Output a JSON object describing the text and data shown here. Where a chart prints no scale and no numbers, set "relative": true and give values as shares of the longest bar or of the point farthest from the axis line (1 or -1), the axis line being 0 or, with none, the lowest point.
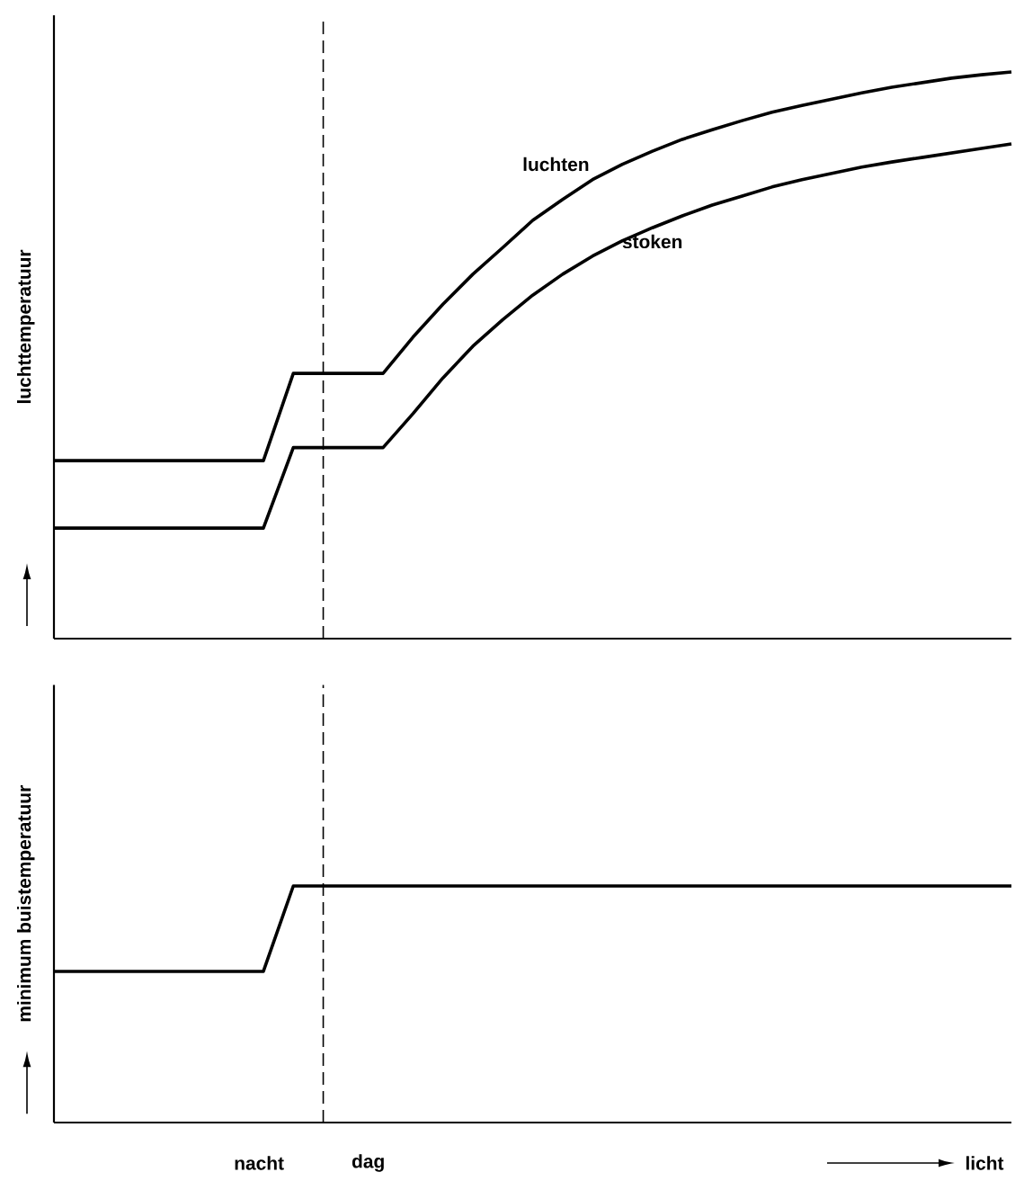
{
  "chart_data": [
    {
      "type": "line",
      "ylabel": "luchttemperatuur",
      "relative": true,
      "marker": "none",
      "line_style": "solid",
      "categories": [
        null,
        null,
        null,
        null,
        null,
        null,
        null,
        null,
        null,
        null,
        null,
        null,
        null,
        null,
        null,
        null,
        null,
        null,
        null,
        null,
        null,
        null,
        null,
        null,
        null,
        null,
        null,
        null,
        null,
        null,
        null,
        null,
        null
      ],
      "series": [
        {
          "name": "luchten",
          "color": "#000000",
          "values": [
            0.314,
            0.314,
            0.314,
            0.314,
            0.314,
            0.314,
            0.314,
            0.314,
            0.468,
            0.468,
            0.468,
            0.468,
            0.532,
            0.59,
            0.643,
            0.69,
            0.738,
            0.775,
            0.81,
            0.837,
            0.86,
            0.881,
            0.898,
            0.914,
            0.929,
            0.941,
            0.952,
            0.963,
            0.973,
            0.981,
            0.989,
            0.995,
            1.0
          ]
        },
        {
          "name": "stoken",
          "color": "#000000",
          "values": [
            0.195,
            0.195,
            0.195,
            0.195,
            0.195,
            0.195,
            0.195,
            0.195,
            0.337,
            0.337,
            0.337,
            0.337,
            0.397,
            0.46,
            0.516,
            0.563,
            0.606,
            0.643,
            0.675,
            0.702,
            0.725,
            0.746,
            0.765,
            0.781,
            0.797,
            0.81,
            0.821,
            0.832,
            0.841,
            0.849,
            0.857,
            0.865,
            0.873
          ]
        }
      ]
    },
    {
      "type": "line",
      "ylabel": "minimum buistemperatuur",
      "xlabel": "licht",
      "relative": true,
      "marker": "none",
      "line_style": "solid",
      "categories": [
        null,
        null,
        null,
        null,
        null,
        null,
        null,
        null,
        null,
        null,
        null,
        null,
        null,
        null,
        null,
        null,
        null,
        null,
        null,
        null,
        null,
        null,
        null,
        null,
        null,
        null,
        null,
        null,
        null,
        null,
        null,
        null,
        null
      ],
      "series": [
        {
          "color": "#000000",
          "values": [
            0.639,
            0.639,
            0.639,
            0.639,
            0.639,
            0.639,
            0.639,
            0.639,
            1,
            1,
            1,
            1,
            1,
            1,
            1,
            1,
            1,
            1,
            1,
            1,
            1,
            1,
            1,
            1,
            1,
            1,
            1,
            1,
            1,
            1,
            1,
            1,
            1
          ]
        }
      ],
      "annotations": [
        "nacht",
        "dag"
      ]
    }
  ]
}
